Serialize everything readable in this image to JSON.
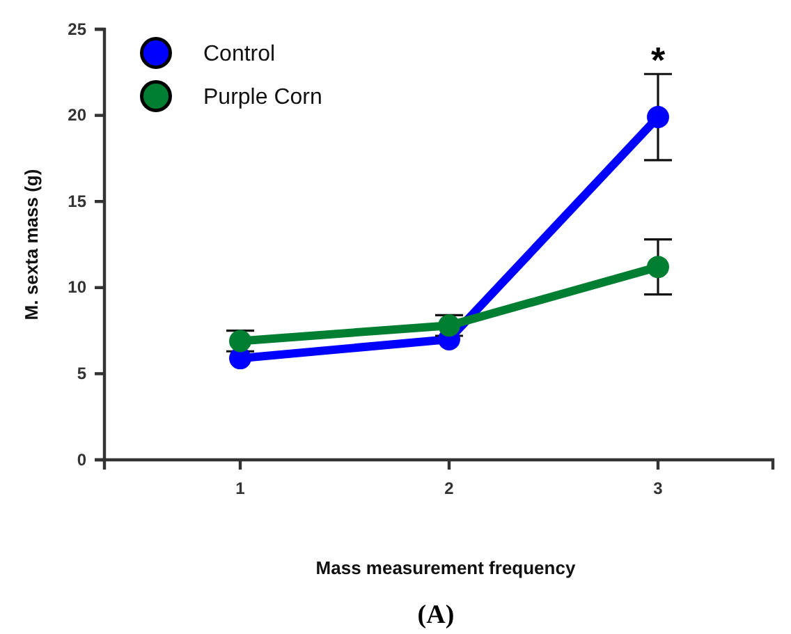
{
  "chart_data": {
    "type": "line",
    "xlabel": "Mass measurement frequency",
    "ylabel": "M. sexta mass (g)",
    "x": [
      1,
      2,
      3
    ],
    "xlim": [
      0.35,
      3.55
    ],
    "xticks": [
      1,
      2,
      3
    ],
    "ylim": [
      0,
      25
    ],
    "yticks": [
      0,
      5,
      10,
      15,
      20,
      25
    ],
    "marker": "circle",
    "legend": "top left",
    "grid": false,
    "series": [
      {
        "name": "Control",
        "color": "#0000ff",
        "values": [
          5.9,
          7.0,
          19.9
        ],
        "errors": [
          null,
          null,
          2.5
        ]
      },
      {
        "name": "Purple Corn",
        "color": "#007f33",
        "values": [
          6.9,
          7.8,
          11.2
        ],
        "errors": [
          0.6,
          0.6,
          1.6
        ]
      }
    ],
    "annotations": [
      "*",
      "(A)"
    ]
  }
}
